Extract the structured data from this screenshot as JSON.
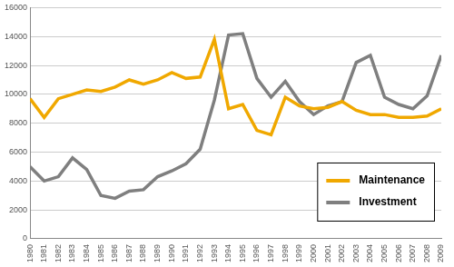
{
  "chart_data": {
    "type": "line",
    "x": [
      1980,
      1981,
      1982,
      1983,
      1984,
      1985,
      1986,
      1987,
      1988,
      1989,
      1990,
      1991,
      1992,
      1993,
      1994,
      1995,
      1996,
      1997,
      1998,
      1999,
      2000,
      2001,
      2002,
      2003,
      2004,
      2005,
      2006,
      2007,
      2008,
      2009
    ],
    "series": [
      {
        "name": "Maintenance",
        "color": "#f0a800",
        "values": [
          9700,
          8400,
          9700,
          10000,
          10300,
          10200,
          10500,
          11000,
          10700,
          11000,
          11500,
          11100,
          11200,
          13800,
          9000,
          9300,
          7500,
          7200,
          9800,
          9200,
          9000,
          9100,
          9500,
          8900,
          8600,
          8600,
          8400,
          8400,
          8500,
          9000
        ]
      },
      {
        "name": "Investment",
        "color": "#7f7f7f",
        "values": [
          5000,
          4000,
          4300,
          5600,
          4800,
          3000,
          2800,
          3300,
          3400,
          4300,
          4700,
          5200,
          6200,
          9600,
          14100,
          14200,
          11100,
          9800,
          10900,
          9500,
          8600,
          9200,
          9500,
          12200,
          12700,
          9800,
          9300,
          9000,
          9900,
          12700
        ]
      }
    ],
    "xlim": [
      1980,
      2009
    ],
    "xticks": [
      1980,
      1981,
      1982,
      1983,
      1984,
      1985,
      1986,
      1987,
      1988,
      1989,
      1990,
      1991,
      1992,
      1993,
      1994,
      1995,
      1996,
      1997,
      1998,
      1999,
      2000,
      2001,
      2002,
      2003,
      2004,
      2005,
      2006,
      2007,
      2008,
      2009
    ],
    "ylim": [
      0,
      16000
    ],
    "yticks": [
      0,
      2000,
      4000,
      6000,
      8000,
      10000,
      12000,
      14000,
      16000
    ],
    "grid": true,
    "legend": "lower right"
  }
}
